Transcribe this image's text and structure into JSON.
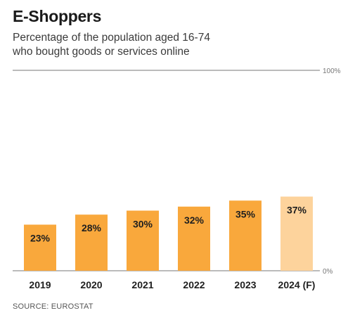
{
  "header": {
    "title": "E-Shoppers",
    "subtitle_line1": "Percentage of the population aged 16-74",
    "subtitle_line2": "who bought goods or services online"
  },
  "footer": {
    "source": "SOURCE: EUROSTAT"
  },
  "colors": {
    "bar": "#F9A83C",
    "bar_forecast": "#FDD39C",
    "axis": "#777777"
  },
  "chart_data": {
    "type": "bar",
    "title": "E-Shoppers",
    "subtitle": "Percentage of the population aged 16-74 who bought goods or services online",
    "categories": [
      "2019",
      "2020",
      "2021",
      "2022",
      "2023",
      "2024 (F)"
    ],
    "values": [
      23,
      28,
      30,
      32,
      35,
      37
    ],
    "value_labels": [
      "23%",
      "28%",
      "30%",
      "32%",
      "35%",
      "37%"
    ],
    "forecast": [
      false,
      false,
      false,
      false,
      false,
      true
    ],
    "ylim": [
      0,
      100
    ],
    "ytick_labels": [
      "0%",
      "100%"
    ],
    "xlabel": "",
    "ylabel": "",
    "grid": false,
    "legend": "none"
  }
}
